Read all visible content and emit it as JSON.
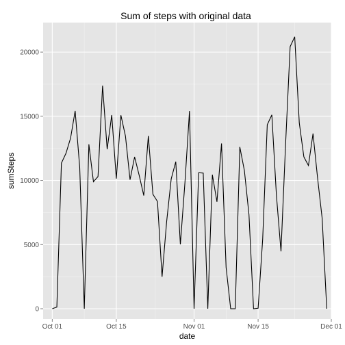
{
  "chart_data": {
    "type": "line",
    "title": "Sum of steps with original data",
    "xlabel": "date",
    "ylabel": "sumSteps",
    "x_start_date": "2012-10-01",
    "x_ticks": [
      {
        "label": "Oct 01",
        "date": "2012-10-01"
      },
      {
        "label": "Oct 15",
        "date": "2012-10-15"
      },
      {
        "label": "Nov 01",
        "date": "2012-11-01"
      },
      {
        "label": "Nov 15",
        "date": "2012-11-15"
      },
      {
        "label": "Dec 01",
        "date": "2012-12-01"
      }
    ],
    "y_ticks": [
      0,
      5000,
      10000,
      15000,
      20000
    ],
    "xlim": [
      "2012-09-29",
      "2012-12-01"
    ],
    "ylim": [
      -800,
      22300
    ],
    "grid": true,
    "panel_background": "#e5e5e5",
    "grid_color": "#ffffff",
    "line_color": "#000000",
    "series": [
      {
        "x": [
          "2012-10-01",
          "2012-10-02",
          "2012-10-03",
          "2012-10-04",
          "2012-10-05",
          "2012-10-06",
          "2012-10-07",
          "2012-10-08",
          "2012-10-09",
          "2012-10-10",
          "2012-10-11",
          "2012-10-12",
          "2012-10-13",
          "2012-10-14",
          "2012-10-15",
          "2012-10-16",
          "2012-10-17",
          "2012-10-18",
          "2012-10-19",
          "2012-10-20",
          "2012-10-21",
          "2012-10-22",
          "2012-10-23",
          "2012-10-24",
          "2012-10-25",
          "2012-10-26",
          "2012-10-27",
          "2012-10-28",
          "2012-10-29",
          "2012-10-30",
          "2012-10-31",
          "2012-11-01",
          "2012-11-02",
          "2012-11-03",
          "2012-11-04",
          "2012-11-05",
          "2012-11-06",
          "2012-11-07",
          "2012-11-08",
          "2012-11-09",
          "2012-11-10",
          "2012-11-11",
          "2012-11-12",
          "2012-11-13",
          "2012-11-14",
          "2012-11-15",
          "2012-11-16",
          "2012-11-17",
          "2012-11-18",
          "2012-11-19",
          "2012-11-20",
          "2012-11-21",
          "2012-11-22",
          "2012-11-23",
          "2012-11-24",
          "2012-11-25",
          "2012-11-26",
          "2012-11-27",
          "2012-11-28",
          "2012-11-29",
          "2012-11-30"
        ],
        "values": [
          0,
          126,
          11352,
          12116,
          13294,
          15420,
          11015,
          0,
          12811,
          9900,
          10304,
          17382,
          12426,
          15098,
          10139,
          15084,
          13452,
          10056,
          11829,
          10395,
          8821,
          13460,
          8918,
          8355,
          2492,
          6778,
          10119,
          11458,
          5018,
          9819,
          15414,
          0,
          10600,
          10571,
          0,
          10439,
          8334,
          12883,
          3219,
          0,
          0,
          12608,
          10765,
          7336,
          0,
          41,
          5441,
          14339,
          15110,
          8841,
          4472,
          12787,
          20427,
          21194,
          14478,
          11834,
          11162,
          13646,
          10183,
          7047,
          0
        ]
      }
    ]
  }
}
